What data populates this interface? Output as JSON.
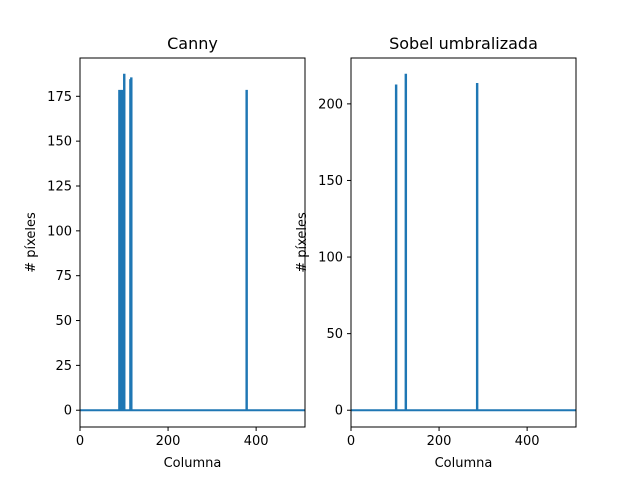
{
  "chart_data": [
    {
      "type": "line",
      "title": "Canny",
      "xlabel": "Columna",
      "ylabel": "# píxeles",
      "xlim": [
        0,
        511
      ],
      "ylim": [
        -9.35,
        196.35
      ],
      "xticks": [
        0,
        200,
        400
      ],
      "yticks": [
        0,
        25,
        50,
        75,
        100,
        125,
        150,
        175
      ],
      "color": "#1f77b4",
      "series": [
        {
          "x": [
            0,
            89,
            89,
            91,
            91,
            95,
            95,
            96,
            96,
            99,
            99,
            100,
            100,
            101,
            101,
            103,
            103,
            104,
            104,
            114,
            114,
            115,
            115,
            116,
            116,
            117,
            117,
            118,
            118,
            378,
            378,
            379,
            379,
            511
          ],
          "y": [
            0,
            0,
            178,
            178,
            0,
            0,
            178,
            178,
            0,
            0,
            178,
            178,
            187,
            187,
            0,
            0,
            0,
            0,
            0,
            0,
            184,
            184,
            0,
            0,
            185,
            185,
            0,
            0,
            0,
            0,
            178,
            178,
            0,
            0
          ]
        }
      ]
    },
    {
      "type": "line",
      "title": "Sobel umbralizada",
      "xlabel": "Columna",
      "ylabel": "# píxeles",
      "xlim": [
        0,
        511
      ],
      "ylim": [
        -10.95,
        229.95
      ],
      "xticks": [
        0,
        200,
        400
      ],
      "yticks": [
        0,
        50,
        100,
        150,
        200
      ],
      "color": "#1f77b4",
      "series": [
        {
          "x": [
            0,
            102,
            102,
            103,
            103,
            124,
            124,
            125,
            125,
            286,
            286,
            287,
            287,
            511
          ],
          "y": [
            0,
            0,
            212,
            212,
            0,
            0,
            219,
            219,
            0,
            0,
            213,
            213,
            0,
            0
          ]
        }
      ]
    }
  ]
}
